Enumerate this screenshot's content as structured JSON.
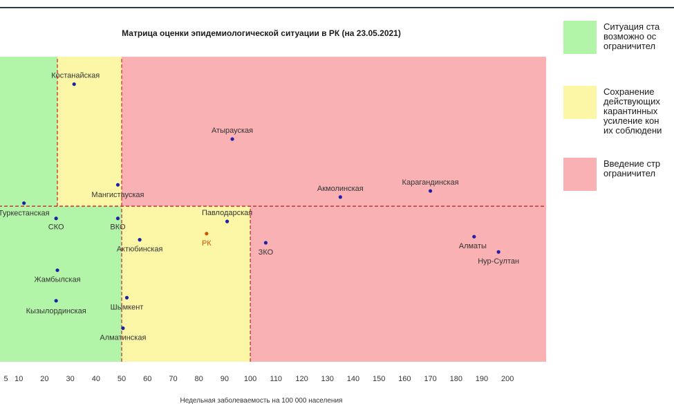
{
  "chart_data": {
    "type": "scatter",
    "title": "Матрица оценки эпидемиологической ситуации в РК (на 23.05.2021)",
    "xlabel": "Недельная заболеваемость на 100 000 населения",
    "ylabel": "",
    "xlim": [
      0,
      215
    ],
    "ylim": [
      0,
      100
    ],
    "x_ticks": [
      5,
      10,
      20,
      30,
      40,
      50,
      60,
      70,
      80,
      90,
      100,
      110,
      120,
      130,
      140,
      150,
      160,
      170,
      180,
      190,
      200
    ],
    "y_threshold": 51,
    "zones": [
      {
        "x0": 0,
        "x1": 25,
        "y0": 51,
        "y1": 100,
        "color": "#b3f5a8"
      },
      {
        "x0": 25,
        "x1": 50,
        "y0": 51,
        "y1": 100,
        "color": "#fbf7a6"
      },
      {
        "x0": 50,
        "x1": 215,
        "y0": 51,
        "y1": 100,
        "color": "#f9b1b4"
      },
      {
        "x0": 0,
        "x1": 50,
        "y0": 0,
        "y1": 51,
        "color": "#b3f5a8"
      },
      {
        "x0": 50,
        "x1": 100,
        "y0": 0,
        "y1": 51,
        "color": "#fbf7a6"
      },
      {
        "x0": 100,
        "x1": 215,
        "y0": 0,
        "y1": 51,
        "color": "#f9b1b4"
      }
    ],
    "dividers": [
      {
        "x": 25,
        "y0": 51,
        "y1": 100
      },
      {
        "x": 50,
        "y0": 51,
        "y1": 100
      },
      {
        "x": 50,
        "y0": 0,
        "y1": 51
      },
      {
        "x": 100,
        "y0": 0,
        "y1": 51
      }
    ],
    "points": [
      {
        "label": "Костанайская",
        "x": 31.5,
        "y": 91
      },
      {
        "label": "Атырауская",
        "x": 93,
        "y": 73
      },
      {
        "label": "Карагандинская",
        "x": 170,
        "y": 56
      },
      {
        "label": "Акмолинская",
        "x": 135,
        "y": 54
      },
      {
        "label": "Мангистауская",
        "x": 48.5,
        "y": 58
      },
      {
        "label": "Туркестанская",
        "x": 12,
        "y": 52
      },
      {
        "label": "СКО",
        "x": 24.5,
        "y": 47
      },
      {
        "label": "ВКО",
        "x": 48.5,
        "y": 47
      },
      {
        "label": "Павлодарская",
        "x": 91,
        "y": 46
      },
      {
        "label": "РК",
        "x": 83,
        "y": 42,
        "color": "#d35400"
      },
      {
        "label": "Актюбинская",
        "x": 57,
        "y": 40
      },
      {
        "label": "ЗКО",
        "x": 106,
        "y": 39
      },
      {
        "label": "Алматы",
        "x": 187,
        "y": 41
      },
      {
        "label": "Нур-Султан",
        "x": 196.5,
        "y": 36
      },
      {
        "label": "Жамбылская",
        "x": 25,
        "y": 30
      },
      {
        "label": "Кызылординская",
        "x": 24.5,
        "y": 20
      },
      {
        "label": "Шымкент",
        "x": 52,
        "y": 21
      },
      {
        "label": "Алматинская",
        "x": 50.5,
        "y": 11
      }
    ],
    "colors": {
      "point": "#1f1fa8",
      "label": "#333333",
      "divider": "#d32f2f"
    }
  },
  "legend": [
    {
      "color": "#b3f5a8",
      "text": "Ситуация ста\nвозможно ос\nограничител"
    },
    {
      "color": "#fbf7a6",
      "text": "Сохранение\nдействующих\nкарантинных\nусиление кон\nих соблюдени"
    },
    {
      "color": "#f9b1b4",
      "text": "Введение стр\nограничител"
    }
  ]
}
